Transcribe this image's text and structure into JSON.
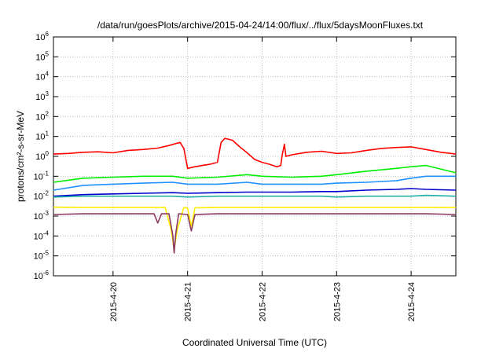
{
  "chart_data": {
    "type": "line",
    "title": "/data/run/goesPlots/archive/2015-04-24/14:00/flux/../flux/5daysMoonFluxes.txt",
    "xlabel": "Coordinated Universal Time (UTC)",
    "ylabel": "protons/cm²-s-sr-MeV",
    "yscale": "log",
    "ylim_exponents": [
      -6,
      6
    ],
    "yticks": [
      {
        "mantissa": "10",
        "exp": "-6",
        "value": 1e-06
      },
      {
        "mantissa": "10",
        "exp": "-5",
        "value": 1e-05
      },
      {
        "mantissa": "10",
        "exp": "-4",
        "value": 0.0001
      },
      {
        "mantissa": "10",
        "exp": "-3",
        "value": 0.001
      },
      {
        "mantissa": "10",
        "exp": "-2",
        "value": 0.01
      },
      {
        "mantissa": "10",
        "exp": "-1",
        "value": 0.1
      },
      {
        "mantissa": "10",
        "exp": "0",
        "value": 1
      },
      {
        "mantissa": "10",
        "exp": "1",
        "value": 10
      },
      {
        "mantissa": "10",
        "exp": "2",
        "value": 100
      },
      {
        "mantissa": "10",
        "exp": "3",
        "value": 1000
      },
      {
        "mantissa": "10",
        "exp": "4",
        "value": 10000
      },
      {
        "mantissa": "10",
        "exp": "5",
        "value": 100000
      },
      {
        "mantissa": "10",
        "exp": "6",
        "value": 1000000
      }
    ],
    "xlim_days": [
      19.2,
      24.6
    ],
    "xticks": [
      {
        "label": "2015-4-20",
        "day": 20
      },
      {
        "label": "2015-4-21",
        "day": 21
      },
      {
        "label": "2015-4-22",
        "day": 22
      },
      {
        "label": "2015-4-23",
        "day": 23
      },
      {
        "label": "2015-4-24",
        "day": 24
      }
    ],
    "grid": true,
    "legend": "none",
    "series": [
      {
        "color": "#ff0000",
        "x": [
          19.2,
          19.4,
          19.6,
          19.8,
          20.0,
          20.2,
          20.4,
          20.6,
          20.75,
          20.85,
          20.9,
          20.95,
          21.0,
          21.1,
          21.2,
          21.3,
          21.4,
          21.45,
          21.5,
          21.6,
          21.7,
          21.8,
          21.9,
          22.0,
          22.1,
          22.2,
          22.25,
          22.27,
          22.3,
          22.32,
          22.4,
          22.6,
          22.8,
          23.0,
          23.2,
          23.4,
          23.6,
          23.8,
          24.0,
          24.2,
          24.4,
          24.6
        ],
        "y": [
          1.3,
          1.4,
          1.6,
          1.7,
          1.5,
          2.0,
          2.2,
          2.6,
          3.5,
          4.5,
          5.0,
          2.5,
          0.25,
          0.3,
          0.35,
          0.4,
          0.5,
          5.0,
          8.0,
          6.5,
          3.0,
          1.5,
          0.7,
          0.5,
          0.4,
          0.3,
          0.35,
          1.2,
          4.0,
          1.0,
          1.2,
          1.6,
          1.8,
          1.4,
          1.5,
          2.0,
          2.5,
          2.8,
          3.0,
          2.2,
          1.6,
          1.3
        ]
      },
      {
        "color": "#00ee00",
        "x": [
          19.2,
          19.6,
          20.0,
          20.4,
          20.8,
          21.0,
          21.4,
          21.8,
          22.0,
          22.4,
          22.8,
          23.0,
          23.4,
          23.8,
          24.0,
          24.2,
          24.6
        ],
        "y": [
          0.05,
          0.08,
          0.09,
          0.1,
          0.1,
          0.08,
          0.09,
          0.12,
          0.1,
          0.09,
          0.1,
          0.12,
          0.18,
          0.25,
          0.3,
          0.35,
          0.15
        ]
      },
      {
        "color": "#1e90ff",
        "x": [
          19.2,
          19.6,
          20.0,
          20.4,
          20.8,
          21.0,
          21.4,
          21.8,
          22.0,
          22.4,
          22.8,
          23.0,
          23.4,
          23.8,
          24.0,
          24.2,
          24.6
        ],
        "y": [
          0.02,
          0.035,
          0.04,
          0.045,
          0.05,
          0.04,
          0.04,
          0.05,
          0.04,
          0.04,
          0.04,
          0.045,
          0.05,
          0.06,
          0.08,
          0.1,
          0.1
        ]
      },
      {
        "color": "#0000cc",
        "x": [
          19.2,
          19.6,
          20.0,
          20.4,
          20.8,
          21.0,
          21.4,
          21.8,
          22.0,
          22.4,
          22.8,
          23.0,
          23.4,
          23.8,
          24.0,
          24.2,
          24.6
        ],
        "y": [
          0.01,
          0.012,
          0.013,
          0.014,
          0.015,
          0.014,
          0.015,
          0.016,
          0.016,
          0.016,
          0.017,
          0.017,
          0.02,
          0.022,
          0.024,
          0.022,
          0.02
        ]
      },
      {
        "color": "#20b2aa",
        "x": [
          19.2,
          19.6,
          20.0,
          20.4,
          20.8,
          21.0,
          21.4,
          21.8,
          22.0,
          22.4,
          22.8,
          23.0,
          23.4,
          23.8,
          24.0,
          24.2,
          24.6
        ],
        "y": [
          0.009,
          0.01,
          0.01,
          0.01,
          0.01,
          0.009,
          0.01,
          0.01,
          0.01,
          0.01,
          0.01,
          0.009,
          0.01,
          0.01,
          0.01,
          0.011,
          0.01
        ]
      },
      {
        "color": "#ffee00",
        "x": [
          19.2,
          19.6,
          20.0,
          20.4,
          20.7,
          20.78,
          20.82,
          20.86,
          20.95,
          21.0,
          21.05,
          21.1,
          21.4,
          21.8,
          22.0,
          22.4,
          22.8,
          23.0,
          23.4,
          23.8,
          24.0,
          24.2,
          24.6
        ],
        "y": [
          0.0028,
          0.0027,
          0.0027,
          0.0027,
          0.0027,
          0.0002,
          2e-05,
          0.0002,
          0.0027,
          0.0025,
          0.0003,
          0.0026,
          0.0027,
          0.0027,
          0.0027,
          0.0027,
          0.0027,
          0.0027,
          0.0027,
          0.0027,
          0.0027,
          0.0027,
          0.0027
        ]
      },
      {
        "color": "#8b3a62",
        "x": [
          19.2,
          19.6,
          20.0,
          20.4,
          20.55,
          20.6,
          20.65,
          20.75,
          20.8,
          20.82,
          20.84,
          20.88,
          21.0,
          21.05,
          21.1,
          21.4,
          21.8,
          22.0,
          22.4,
          22.8,
          23.0,
          23.4,
          23.8,
          24.0,
          24.2,
          24.6
        ],
        "y": [
          0.0012,
          0.0013,
          0.0013,
          0.0013,
          0.0013,
          0.00045,
          0.0013,
          0.0013,
          0.00012,
          1.4e-05,
          0.00012,
          0.0013,
          0.0012,
          0.00018,
          0.0012,
          0.0013,
          0.0013,
          0.0013,
          0.0013,
          0.0013,
          0.0013,
          0.0013,
          0.0013,
          0.0013,
          0.0013,
          0.0012
        ]
      }
    ]
  }
}
